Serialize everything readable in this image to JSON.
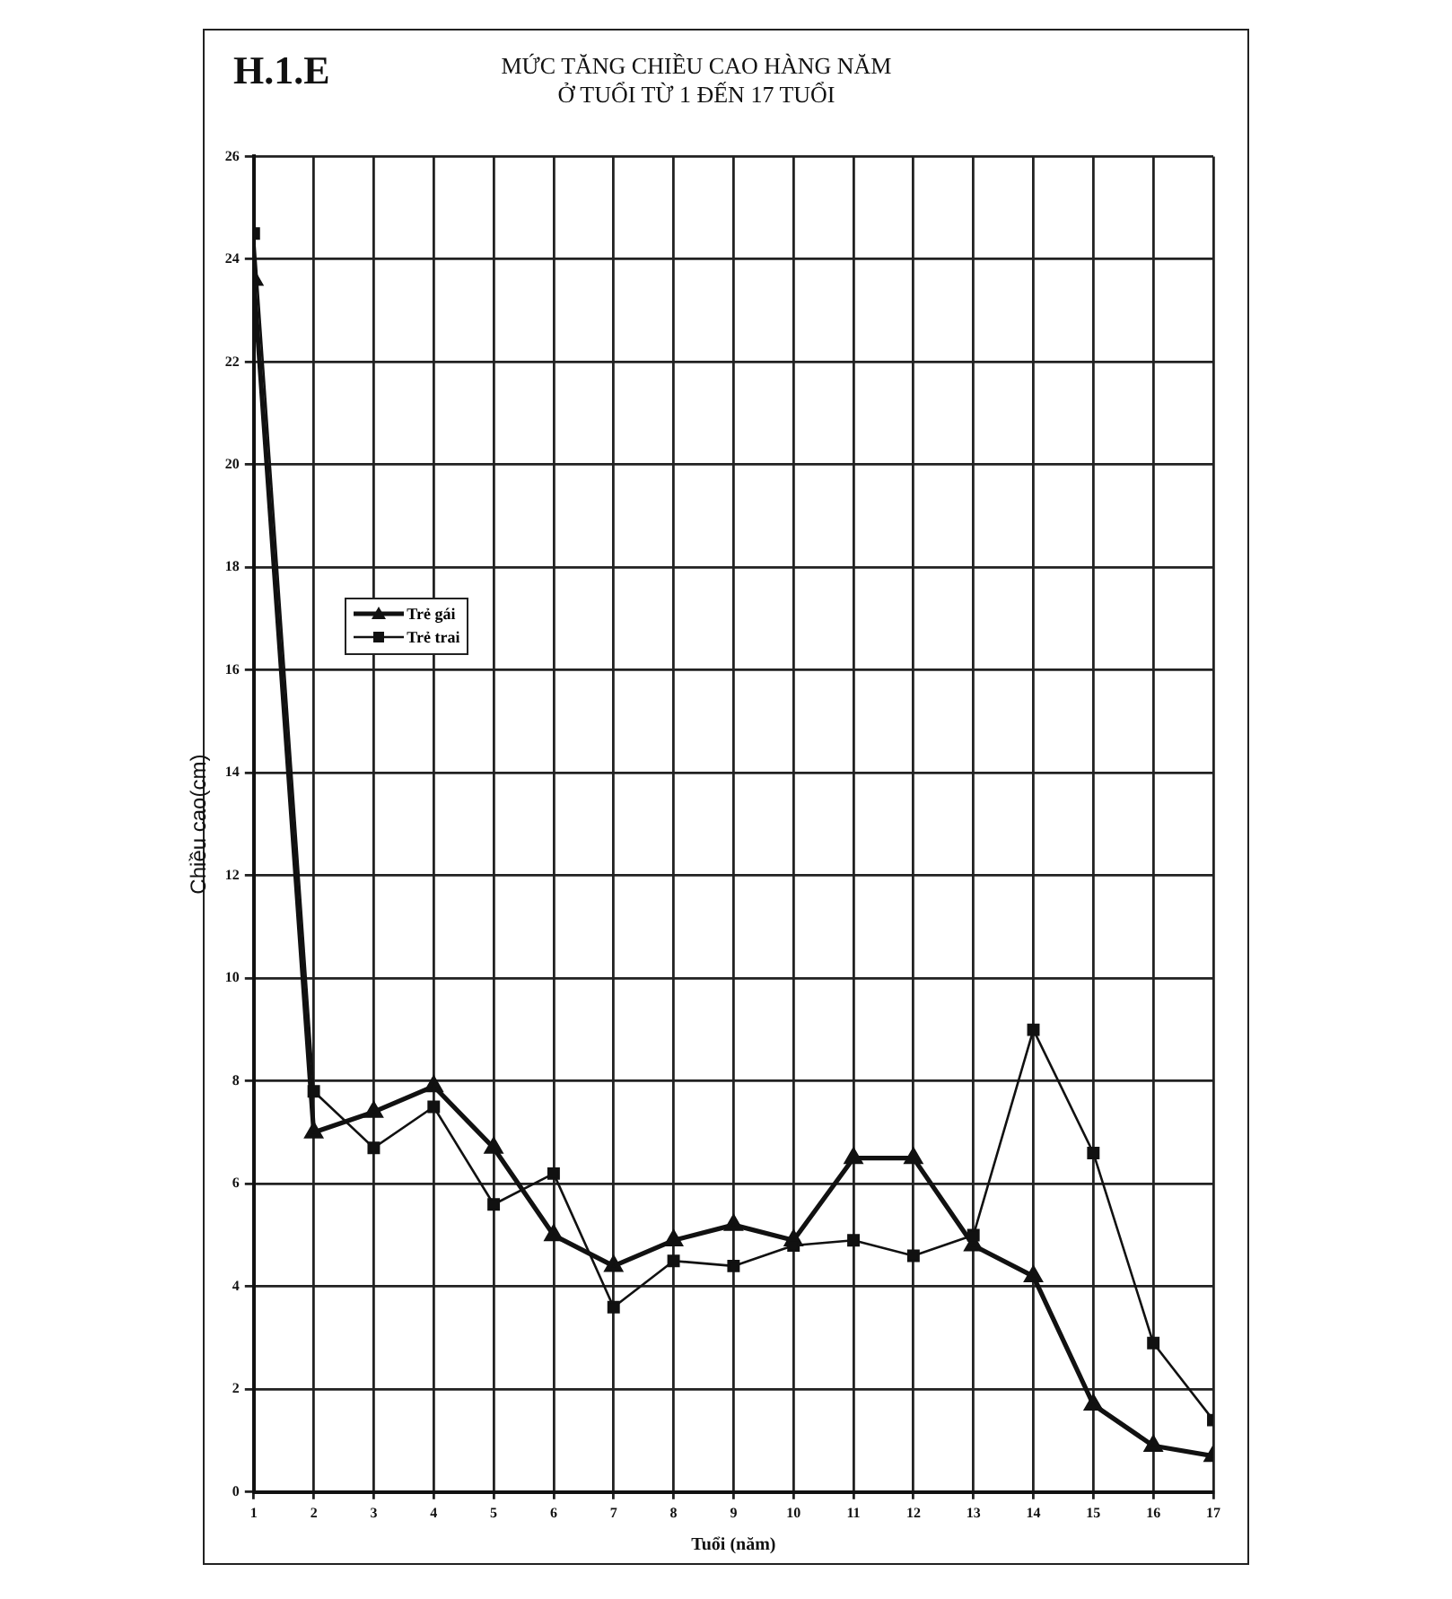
{
  "chart_data": {
    "type": "line",
    "title": "MỨC TĂNG CHIỀU CAO HÀNG NĂM\nỞ TUỔI TỪ 1 ĐẾN 17 TUỔI",
    "xlabel": "Tuổi (năm)",
    "ylabel": "Chiều cao(cm)",
    "annotations": [
      "H.1.E"
    ],
    "x": [
      1,
      2,
      3,
      4,
      5,
      6,
      7,
      8,
      9,
      10,
      11,
      12,
      13,
      14,
      15,
      16,
      17
    ],
    "xlim": [
      1,
      17
    ],
    "xticks": [
      1,
      2,
      3,
      4,
      5,
      6,
      7,
      8,
      9,
      10,
      11,
      12,
      13,
      14,
      15,
      16,
      17
    ],
    "ylim": [
      0,
      26
    ],
    "yticks": [
      0,
      2,
      4,
      6,
      8,
      10,
      12,
      14,
      16,
      18,
      20,
      22,
      24,
      26
    ],
    "grid": true,
    "legend": "top left",
    "series": [
      {
        "name": "Trẻ gái",
        "color": "#111111",
        "marker": "triangle",
        "values": [
          23.6,
          7.0,
          7.4,
          7.9,
          6.7,
          5.0,
          4.4,
          4.9,
          5.2,
          4.9,
          6.5,
          6.5,
          4.8,
          4.2,
          1.7,
          0.9,
          0.7
        ]
      },
      {
        "name": "Trẻ trai",
        "color": "#111111",
        "marker": "square",
        "values": [
          24.5,
          7.8,
          6.7,
          7.5,
          5.6,
          6.2,
          3.6,
          4.5,
          4.4,
          4.8,
          4.9,
          4.6,
          5.0,
          9.0,
          6.6,
          2.9,
          1.4
        ]
      }
    ]
  }
}
